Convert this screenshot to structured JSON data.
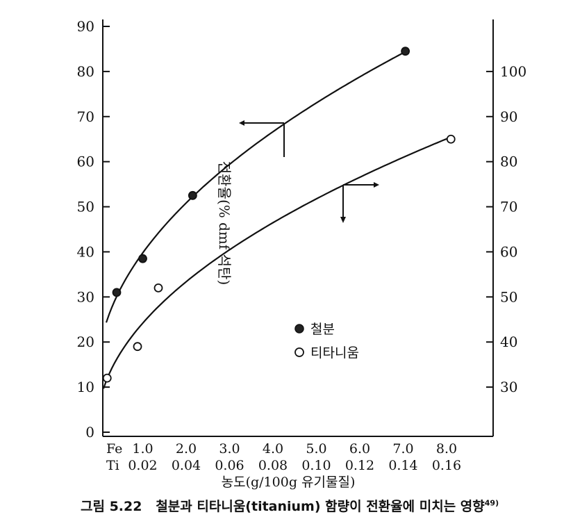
{
  "chart_data": {
    "type": "scatter",
    "ylabel": "전환율(% dmf 석탄)",
    "xlabel": "농도(g/100g 유기물질)",
    "ylim": [
      0,
      90
    ],
    "y_ticks": [
      0,
      10,
      20,
      30,
      40,
      50,
      60,
      70,
      80,
      90
    ],
    "y2lim": [
      20,
      110
    ],
    "y2_ticks": [
      30,
      40,
      50,
      60,
      70,
      80,
      90,
      100
    ],
    "x_rows": [
      {
        "label": "Fe",
        "ticks": [
          "1.0",
          "2.0",
          "3.0",
          "4.0",
          "5.0",
          "6.0",
          "7.0",
          "8.0"
        ]
      },
      {
        "label": "Ti",
        "ticks": [
          "0.02",
          "0.04",
          "0.06",
          "0.08",
          "0.10",
          "0.12",
          "0.14",
          "0.16"
        ]
      }
    ],
    "series": [
      {
        "name": "철분",
        "axis": "left",
        "marker": "filled",
        "points": [
          [
            0.4,
            31
          ],
          [
            1.0,
            38.5
          ],
          [
            2.15,
            52.5
          ],
          [
            7.05,
            84.5
          ]
        ]
      },
      {
        "name": "티타니움",
        "axis": "right",
        "marker": "open",
        "points": [
          [
            0.0036,
            32
          ],
          [
            0.0176,
            39
          ],
          [
            0.0272,
            52
          ],
          [
            0.162,
            85
          ]
        ]
      }
    ],
    "grid": false,
    "legend_position": "center-right"
  },
  "caption": {
    "label": "그림 5.22",
    "text": "철분과 티타니움(titanium) 함량이 전환율에 미치는 영향",
    "ref": "49)"
  }
}
